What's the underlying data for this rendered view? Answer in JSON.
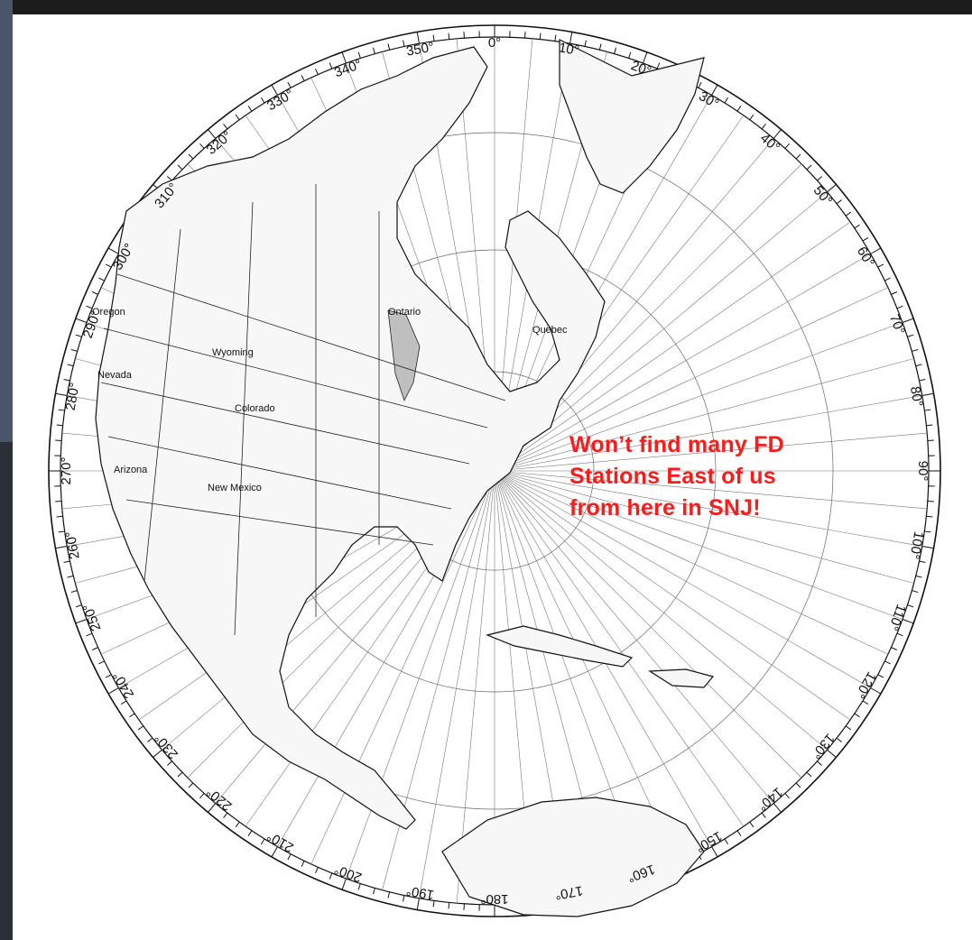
{
  "slide": {
    "callout_text": "Won’t find many FD\nStations East of us\nfrom here in SNJ!",
    "callout_color": "#ff1a1a"
  },
  "map": {
    "projection": "azimuthal-equidistant",
    "bearing_step_deg": 10,
    "bearing_labels": [
      "0°",
      "10°",
      "20°",
      "30°",
      "40°",
      "50°",
      "60°",
      "70°",
      "80°",
      "90°",
      "100°",
      "110°",
      "120°",
      "130°",
      "140°",
      "150°",
      "160°",
      "170°",
      "180°",
      "190°",
      "200°",
      "210°",
      "220°",
      "230°",
      "240°",
      "250°",
      "260°",
      "270°",
      "280°",
      "290°",
      "300°",
      "310°",
      "320°",
      "330°",
      "340°",
      "350°"
    ],
    "place_labels": [
      "Oregon",
      "Nevada",
      "Arizona",
      "New Mexico",
      "Wyoming",
      "Colorado",
      "Ontario",
      "Quebec"
    ],
    "land_fill": "#f7f7f7",
    "water_fill": "#ffffff",
    "ink_color": "#111111"
  }
}
